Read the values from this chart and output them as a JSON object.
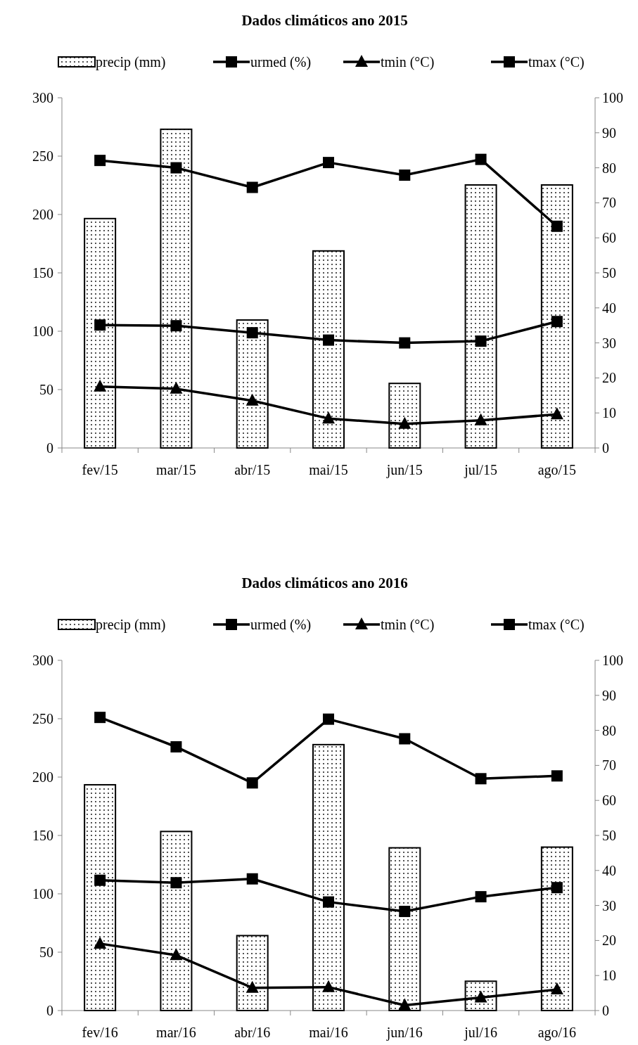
{
  "chart_data": [
    {
      "type": "bar",
      "title": "Dados climáticos ano 2015",
      "legend": "top",
      "categories": [
        "fev/15",
        "mar/15",
        "abr/15",
        "mai/15",
        "jun/15",
        "jul/15",
        "ago/15"
      ],
      "ylim": [
        0,
        300
      ],
      "yticks": [
        0,
        50,
        100,
        150,
        200,
        250,
        300
      ],
      "y2lim": [
        0,
        100
      ],
      "y2ticks": [
        0,
        10,
        20,
        30,
        40,
        50,
        60,
        70,
        80,
        90,
        100
      ],
      "series": [
        {
          "name": "precip (mm)",
          "color": "#000000",
          "values": [
            196.5,
            273,
            109.6,
            168.8,
            55.3,
            225.3,
            225.3
          ]
        },
        {
          "name": "urmed (%)",
          "type": "line",
          "axis": "y2",
          "marker": "square",
          "color": "#000000",
          "values": [
            82.1,
            80.0,
            74.4,
            81.5,
            77.9,
            82.4,
            63.3
          ]
        },
        {
          "name": "tmin (°C)",
          "type": "line",
          "axis": "y2",
          "marker": "triangle",
          "color": "#000000",
          "values": [
            17.5,
            16.9,
            13.5,
            8.4,
            6.9,
            7.9,
            9.6
          ]
        },
        {
          "name": "tmax (°C)",
          "type": "line",
          "axis": "y2",
          "marker": "square",
          "color": "#000000",
          "values": [
            35.1,
            34.9,
            32.9,
            30.8,
            30.0,
            30.5,
            36.1
          ]
        }
      ]
    },
    {
      "type": "bar",
      "title": "Dados climáticos ano 2016",
      "legend": "top",
      "categories": [
        "fev/16",
        "mar/16",
        "abr/16",
        "mai/16",
        "jun/16",
        "jul/16",
        "ago/16"
      ],
      "ylim": [
        0,
        300
      ],
      "yticks": [
        0,
        50,
        100,
        150,
        200,
        250,
        300
      ],
      "y2lim": [
        0,
        100
      ],
      "y2ticks": [
        0,
        10,
        20,
        30,
        40,
        50,
        60,
        70,
        80,
        90,
        100
      ],
      "series": [
        {
          "name": "precip (mm)",
          "color": "#000000",
          "values": [
            193.4,
            153.4,
            64.2,
            227.8,
            139.4,
            25.1,
            140
          ]
        },
        {
          "name": "urmed (%)",
          "type": "line",
          "axis": "y2",
          "marker": "square",
          "color": "#000000",
          "values": [
            83.7,
            75.3,
            65.0,
            83.2,
            77.6,
            66.2,
            67.0
          ]
        },
        {
          "name": "tmin (°C)",
          "type": "line",
          "axis": "y2",
          "marker": "triangle",
          "color": "#000000",
          "values": [
            19.1,
            15.8,
            6.5,
            6.7,
            1.5,
            3.7,
            6.0
          ]
        },
        {
          "name": "tmax (°C)",
          "type": "line",
          "axis": "y2",
          "marker": "square",
          "color": "#000000",
          "values": [
            37.2,
            36.5,
            37.6,
            31.0,
            28.3,
            32.5,
            35.1
          ]
        }
      ]
    }
  ]
}
